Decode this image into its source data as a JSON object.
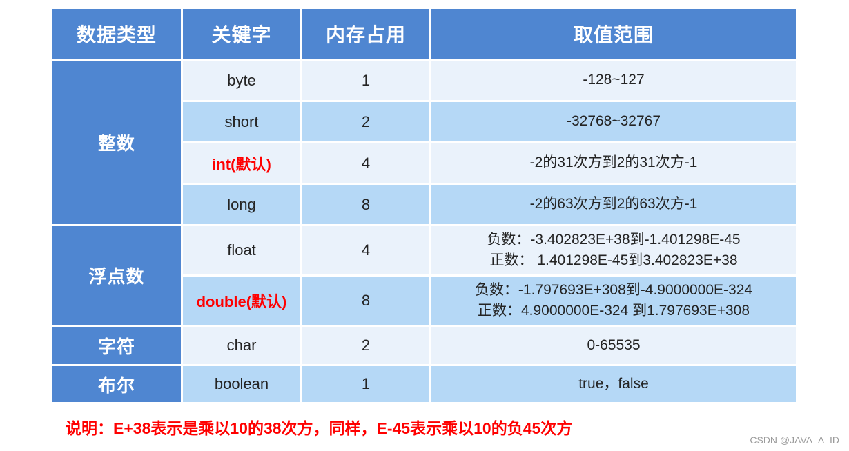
{
  "table": {
    "headers": [
      "数据类型",
      "关键字",
      "内存占用",
      "取值范围"
    ],
    "groups": [
      {
        "category": "整数",
        "rows": [
          {
            "keyword": "byte",
            "size": "1",
            "default": false,
            "range": [
              "-128~127"
            ]
          },
          {
            "keyword": "short",
            "size": "2",
            "default": false,
            "range": [
              "-32768~32767"
            ]
          },
          {
            "keyword": "int(默认)",
            "size": "4",
            "default": true,
            "range": [
              "-2的31次方到2的31次方-1"
            ]
          },
          {
            "keyword": "long",
            "size": "8",
            "default": false,
            "range": [
              "-2的63次方到2的63次方-1"
            ]
          }
        ]
      },
      {
        "category": "浮点数",
        "rows": [
          {
            "keyword": "float",
            "size": "4",
            "default": false,
            "range": [
              "负数：-3.402823E+38到-1.401298E-45",
              "正数： 1.401298E-45到3.402823E+38"
            ]
          },
          {
            "keyword": "double(默认)",
            "size": "8",
            "default": true,
            "range": [
              "负数：-1.797693E+308到-4.9000000E-324",
              "正数：4.9000000E-324 到1.797693E+308"
            ]
          }
        ]
      },
      {
        "category": "字符",
        "rows": [
          {
            "keyword": "char",
            "size": "2",
            "default": false,
            "range": [
              "0-65535"
            ]
          }
        ]
      },
      {
        "category": "布尔",
        "rows": [
          {
            "keyword": "boolean",
            "size": "1",
            "default": false,
            "range": [
              "true，false"
            ]
          }
        ]
      }
    ]
  },
  "note": "说明：E+38表示是乘以10的38次方，同样，E-45表示乘以10的负45次方",
  "watermark": "CSDN @JAVA_A_ID",
  "colors": {
    "header_blue": "#4f86d1",
    "row_light": "#eaf2fb",
    "row_dark": "#b5d8f6",
    "default_red": "#ff0000",
    "note_red": "#ff0000",
    "text": "#242424",
    "watermark_gray": "#9b9b9b"
  }
}
